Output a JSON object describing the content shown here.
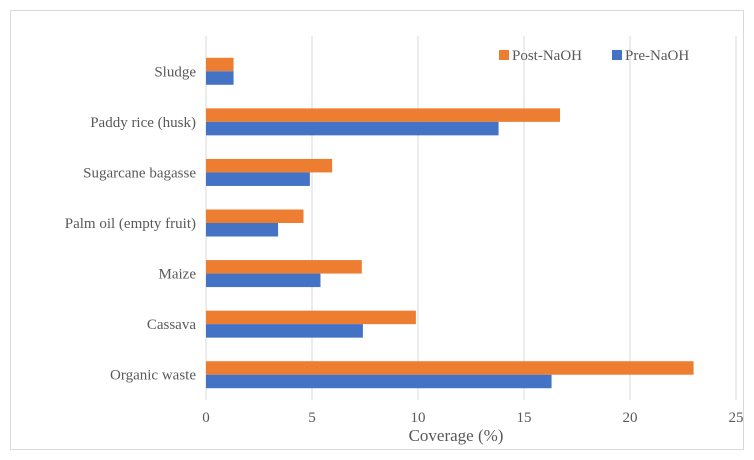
{
  "chart_data": {
    "type": "bar",
    "orientation": "horizontal",
    "categories": [
      "Organic waste",
      "Cassava",
      "Maize",
      "Palm oil (empty fruit)",
      "Sugarcane bagasse",
      "Paddy rice (husk)",
      "Sludge"
    ],
    "series": [
      {
        "name": "Pre-NaOH",
        "color": "#4472C4",
        "values": [
          16.3,
          7.4,
          5.4,
          3.4,
          4.9,
          13.8,
          1.3
        ]
      },
      {
        "name": "Post-NaOH",
        "color": "#ED7D31",
        "values": [
          23.0,
          9.9,
          7.35,
          4.6,
          5.95,
          16.7,
          1.3
        ]
      }
    ],
    "xlabel": "Coverage (%)",
    "ylabel": "",
    "xlim": [
      0,
      25
    ],
    "x_ticks": [
      "0",
      "5",
      "10",
      "15",
      "20",
      "25"
    ],
    "grid": "vertical",
    "legend_position": "top-right"
  }
}
